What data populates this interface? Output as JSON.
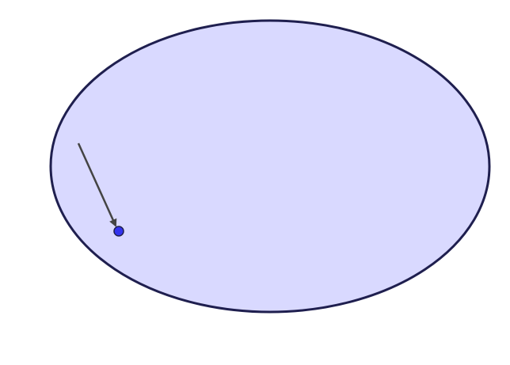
{
  "diagram": {
    "ellipse": {
      "fill": "#d9d9ff",
      "stroke": "#1f1f4f"
    },
    "arrow": {
      "color": "#444444"
    },
    "point": {
      "fill": "#3333ee",
      "stroke": "#1f1f4f"
    }
  }
}
